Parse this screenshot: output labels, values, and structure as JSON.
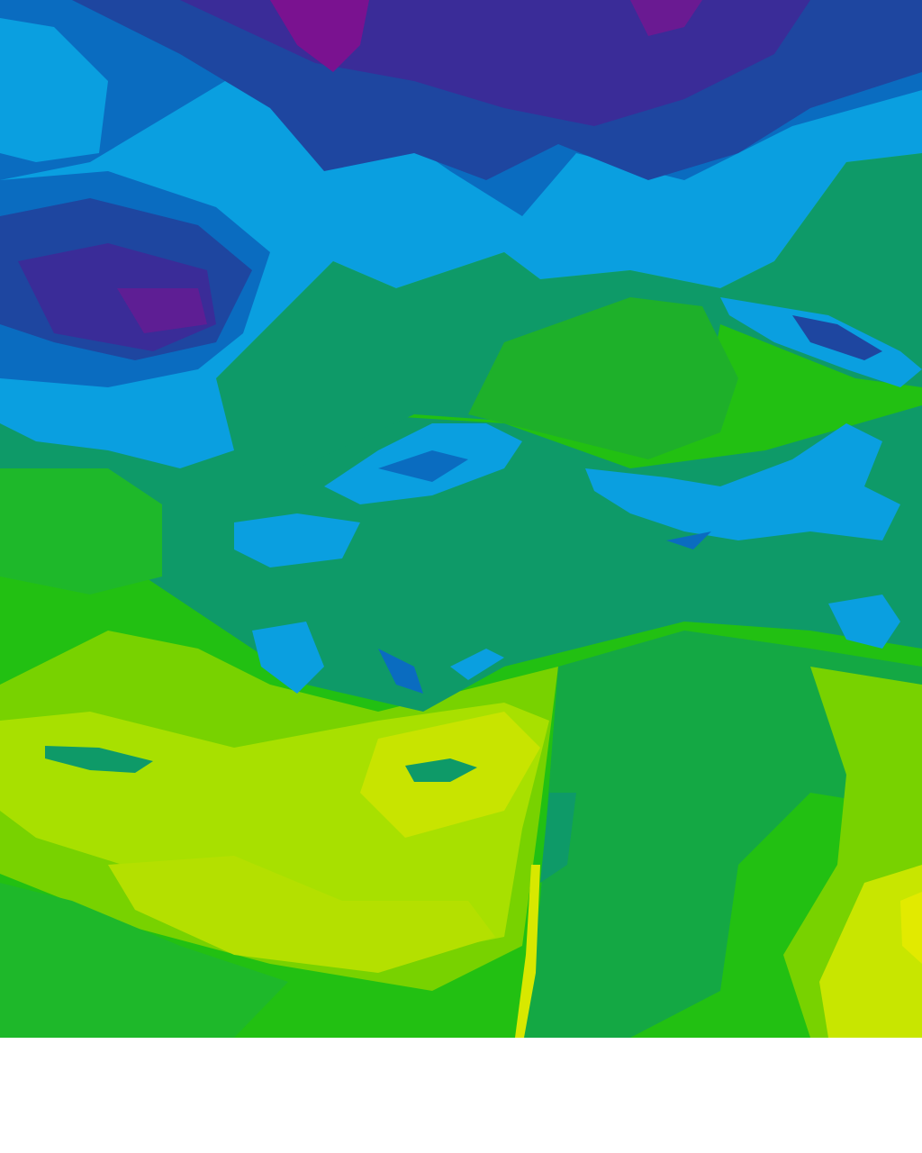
{
  "map": {
    "type": "filled-contour field",
    "palette": {
      "purple": "#7a1290",
      "indigo": "#3a2c98",
      "dark_blue": "#1e46a0",
      "blue": "#0a6cc0",
      "light_blue": "#0a9fe0",
      "teal": "#0e9a68",
      "green_dark": "#12a83c",
      "green": "#22c012",
      "light_green": "#78d200",
      "yellow_green": "#a8e000",
      "yellow": "#dcea00"
    }
  }
}
